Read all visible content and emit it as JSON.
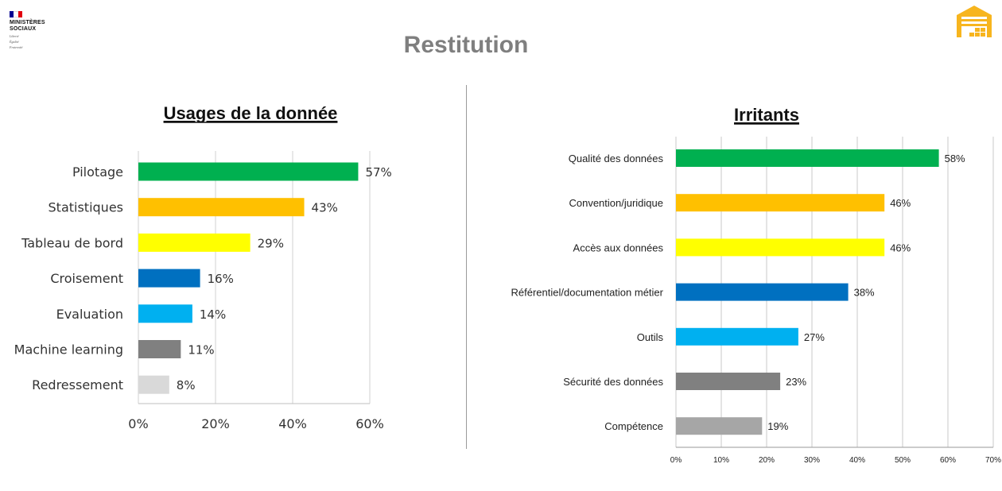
{
  "header": {
    "logo_lines": [
      "MINISTÈRES",
      "SOCIAUX"
    ],
    "logo_motto": [
      "Liberté",
      "Égalité",
      "Fraternité"
    ],
    "page_title": "Restitution",
    "corner_icon": "warehouse-icon",
    "accent_color": "#f7b51e"
  },
  "chart_data": [
    {
      "type": "bar",
      "orientation": "horizontal",
      "title": "Usages de la donnée",
      "categories": [
        "Pilotage",
        "Statistiques",
        "Tableau de bord",
        "Croisement",
        "Evaluation",
        "Machine learning",
        "Redressement"
      ],
      "values": [
        57,
        43,
        29,
        16,
        14,
        11,
        8
      ],
      "value_labels": [
        "57%",
        "43%",
        "29%",
        "16%",
        "14%",
        "11%",
        "8%"
      ],
      "colors": [
        "#00b050",
        "#ffc000",
        "#ffff00",
        "#0070c0",
        "#00b0f0",
        "#808080",
        "#d9d9d9"
      ],
      "xlim": [
        0,
        60
      ],
      "xticks": [
        "0%",
        "20%",
        "40%",
        "60%"
      ],
      "xlabel": "",
      "ylabel": "",
      "grid": true
    },
    {
      "type": "bar",
      "orientation": "horizontal",
      "title": "Irritants",
      "categories": [
        "Qualité des données",
        "Convention/juridique",
        "Accès aux données",
        "Référentiel/documentation métier",
        "Outils",
        "Sécurité des données",
        "Compétence"
      ],
      "values": [
        58,
        46,
        46,
        38,
        27,
        23,
        19
      ],
      "value_labels": [
        "58%",
        "46%",
        "46%",
        "38%",
        "27%",
        "23%",
        "19%"
      ],
      "colors": [
        "#00b050",
        "#ffc000",
        "#ffff00",
        "#0070c0",
        "#00b0f0",
        "#808080",
        "#a6a6a6"
      ],
      "xlim": [
        0,
        70
      ],
      "xticks": [
        "0%",
        "10%",
        "20%",
        "30%",
        "40%",
        "50%",
        "60%",
        "70%"
      ],
      "xlabel": "",
      "ylabel": "",
      "grid": true
    }
  ]
}
